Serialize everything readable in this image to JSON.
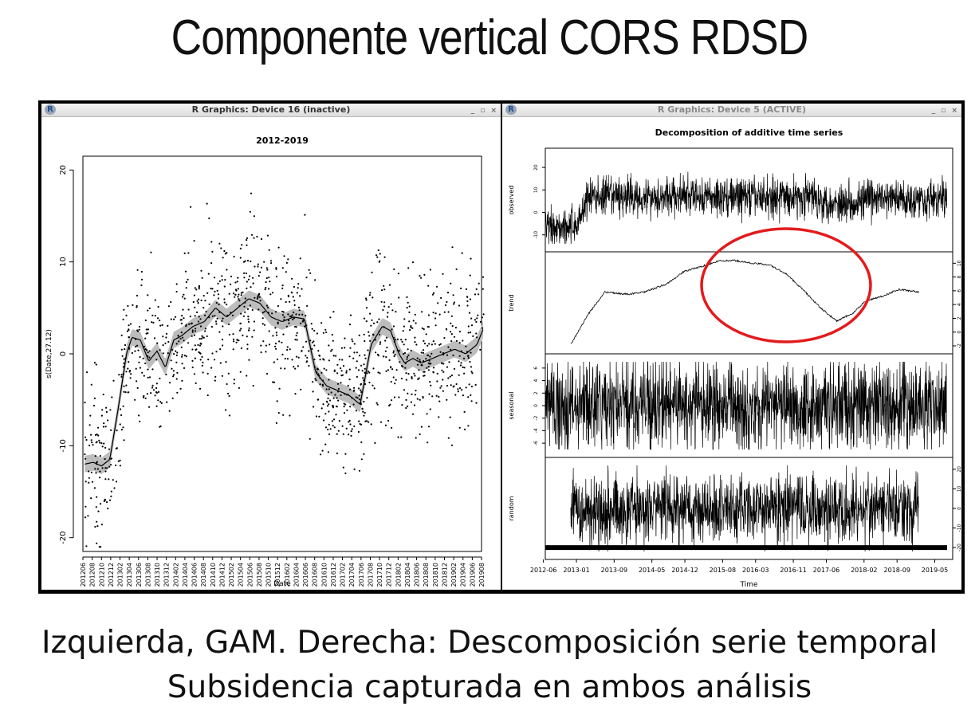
{
  "slide": {
    "title": "Componente vertical CORS RDSD",
    "caption_line1": "Izquierda, GAM. Derecha: Descomposición serie temporal",
    "caption_line2": "Subsidencia capturada en ambos análisis"
  },
  "windows": {
    "left": {
      "title": "R Graphics: Device 16 (inactive)",
      "logo": "R",
      "buttons": "_ ▫ ×"
    },
    "right": {
      "title": "R Graphics: Device 5 (ACTIVE)",
      "logo": "R",
      "buttons": "_ ▫ ×"
    }
  },
  "colors": {
    "annotation": "#e31a1c",
    "band": "#bdbdbd",
    "ink": "#000000"
  },
  "chart_data": [
    {
      "type": "scatter",
      "title": "2012-2019",
      "xlabel": "Date",
      "ylabel": "s(Date,27.12)",
      "ylim": [
        -21.5,
        21.5
      ],
      "yticks": [
        -20,
        -10,
        0,
        10,
        20
      ],
      "xlim": [
        "2012-06",
        "2019-08"
      ],
      "xtick_labels": [
        "201206",
        "201208",
        "201210",
        "201212",
        "201302",
        "201304",
        "201306",
        "201308",
        "201310",
        "201312",
        "201402",
        "201404",
        "201406",
        "201408",
        "201410",
        "201412",
        "201502",
        "201504",
        "201506",
        "201508",
        "201510",
        "201512",
        "201602",
        "201604",
        "201606",
        "201608",
        "201610",
        "201612",
        "201702",
        "201704",
        "201706",
        "201708",
        "201710",
        "201712",
        "201802",
        "201804",
        "201806",
        "201808",
        "201810",
        "201812",
        "201902",
        "201904",
        "201906",
        "201908"
      ],
      "smooth": {
        "x": [
          2012.45,
          2012.6,
          2012.75,
          2012.9,
          2013.05,
          2013.2,
          2013.3,
          2013.45,
          2013.6,
          2013.75,
          2013.9,
          2014.05,
          2014.2,
          2014.4,
          2014.6,
          2014.8,
          2015.0,
          2015.2,
          2015.4,
          2015.6,
          2015.8,
          2016.0,
          2016.2,
          2016.4,
          2016.6,
          2016.8,
          2017.0,
          2017.2,
          2017.4,
          2017.6,
          2017.8,
          2017.95,
          2018.1,
          2018.2,
          2018.35,
          2018.5,
          2018.7,
          2018.9,
          2019.1,
          2019.3,
          2019.5,
          2019.62
        ],
        "y": [
          -12,
          -11.8,
          -12.2,
          -11.5,
          -6,
          0,
          1.8,
          1.5,
          -0.8,
          0.3,
          -1.5,
          1.5,
          2,
          3,
          3.5,
          5,
          4,
          5,
          6,
          5.5,
          4,
          3.5,
          4,
          3.8,
          -2,
          -3.5,
          -4,
          -4.5,
          -5.5,
          1,
          3,
          2.5,
          0,
          -1,
          -0.5,
          -1,
          -0.5,
          0,
          0.5,
          0,
          1,
          2.8
        ],
        "band_halfwidth": 0.9
      },
      "points_note": "about 1300 scattered daily residual points, spread roughly ±8 around the smooth curve"
    },
    {
      "type": "line",
      "title": "Decomposition of additive time series",
      "xlabel": "Time",
      "xtick_labels": [
        "2012-06",
        "2013-01",
        "2013-09",
        "2014-05",
        "2014-12",
        "2015-08",
        "2016-03",
        "2016-11",
        "2017-06",
        "2018-02",
        "2018-09",
        "2019-05"
      ],
      "panels": [
        {
          "name": "observed",
          "ylim": [
            -14,
            25
          ],
          "yticks": [
            -10,
            0,
            10,
            20
          ],
          "level_x": [
            2012.45,
            2013.0,
            2013.2,
            2017.2,
            2017.5,
            2018.3,
            2019.5
          ],
          "level_y": [
            -6,
            -6,
            7,
            7,
            4,
            6,
            6
          ],
          "noise": 5
        },
        {
          "name": "trend",
          "ylim": [
            -2,
            10.5
          ],
          "yticks": [
            -2,
            0,
            2,
            4,
            6,
            8,
            10
          ],
          "x": [
            2012.9,
            2013.2,
            2013.5,
            2013.9,
            2014.2,
            2014.6,
            2014.9,
            2015.2,
            2015.5,
            2015.8,
            2016.1,
            2016.4,
            2016.7,
            2017.0,
            2017.3,
            2017.6,
            2017.9,
            2018.1,
            2018.4,
            2018.7,
            2018.9,
            2019.05
          ],
          "y": [
            -1.8,
            2.5,
            5.8,
            5.5,
            5.8,
            7,
            8.8,
            9.5,
            10.3,
            10.4,
            10.0,
            9.8,
            8.5,
            6.2,
            3.6,
            1.6,
            2.8,
            4.5,
            5.2,
            6.2,
            6.0,
            5.8
          ]
        },
        {
          "name": "seasonal",
          "ylim": [
            -7,
            7
          ],
          "yticks": [
            -6,
            -4,
            -2,
            0,
            2,
            4,
            6
          ],
          "noise": 4
        },
        {
          "name": "random",
          "ylim": [
            -22,
            22
          ],
          "yticks": [
            -20,
            -10,
            0,
            10,
            20
          ],
          "x_range": [
            2012.9,
            2019.05
          ],
          "noise": 10
        }
      ]
    }
  ]
}
